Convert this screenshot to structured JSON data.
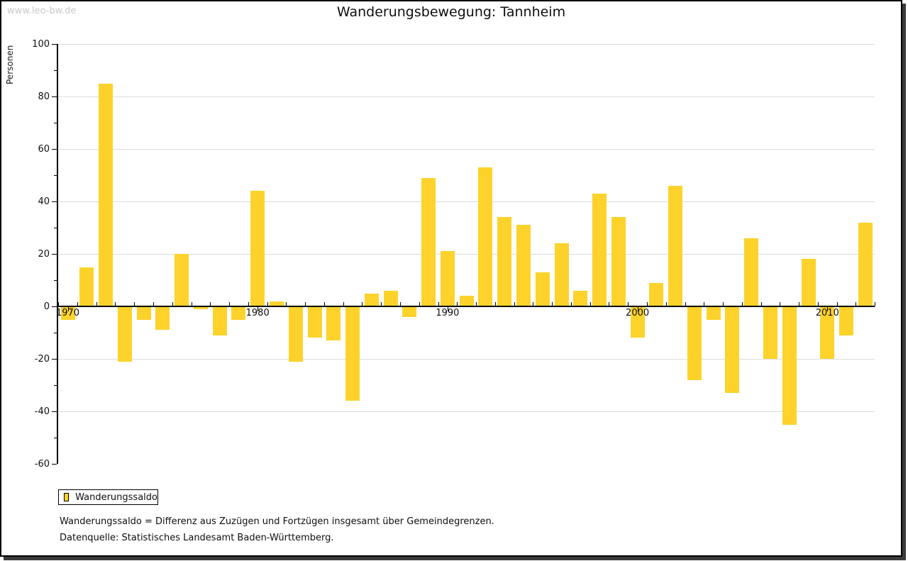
{
  "page": {
    "watermark": "www.leo-bw.de",
    "footnote1": "Wanderungssaldo = Differenz aus Zuzügen und Fortzügen insgesamt über Gemeindegrenzen.",
    "footnote2": "Datenquelle: Statistisches Landesamt Baden-Württemberg."
  },
  "legend": {
    "label": "Wanderungssaldo",
    "swatch_color": "#fdd32b"
  },
  "chart_data": {
    "type": "bar",
    "title": "Wanderungsbewegung: Tannheim",
    "xlabel": "",
    "ylabel": "Personen",
    "ylim": [
      -60,
      100
    ],
    "ytick_step": 20,
    "ytick_labels": [
      "100",
      "80",
      "60",
      "40",
      "20",
      "0",
      "-20",
      "-40",
      "-60"
    ],
    "xtick_labels": [
      "1970",
      "1980",
      "1990",
      "2000",
      "2010"
    ],
    "grid": true,
    "legend_position": "bottom-left",
    "bar_color": "#fdd32b",
    "series": [
      {
        "name": "Wanderungssaldo",
        "years": [
          1970,
          1971,
          1972,
          1973,
          1974,
          1975,
          1976,
          1977,
          1978,
          1979,
          1980,
          1981,
          1982,
          1983,
          1984,
          1985,
          1986,
          1987,
          1988,
          1989,
          1990,
          1991,
          1992,
          1993,
          1994,
          1995,
          1996,
          1997,
          1998,
          1999,
          2000,
          2001,
          2002,
          2003,
          2004,
          2005,
          2006,
          2007,
          2008,
          2009,
          2010,
          2011,
          2012
        ],
        "values": [
          -5,
          15,
          85,
          -21,
          -5,
          -9,
          20,
          -1,
          -11,
          -5,
          44,
          2,
          -21,
          -12,
          -13,
          -36,
          5,
          6,
          -4,
          49,
          21,
          4,
          53,
          34,
          31,
          13,
          24,
          6,
          43,
          34,
          -12,
          9,
          46,
          -28,
          -5,
          -33,
          26,
          -20,
          -45,
          18,
          -20,
          -11,
          32
        ]
      }
    ]
  }
}
